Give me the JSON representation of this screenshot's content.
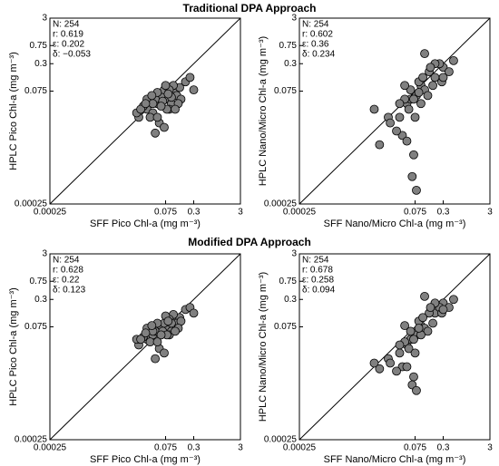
{
  "sections": [
    "Traditional DPA Approach",
    "Modified DPA Approach"
  ],
  "chart_data": [
    {
      "type": "scatter",
      "xlabel": "SFF Pico Chl-a  (mg m⁻³)",
      "ylabel": "HPLC Pico Chl-a  (mg m⁻³)",
      "annotations": [
        "N: 254",
        "r: 0.619",
        "ε: 0.202",
        "δ: −0.053"
      ],
      "log": true,
      "color": "#808080",
      "xlim": [
        0.00025,
        3
      ],
      "ylim": [
        0.00025,
        3
      ],
      "xticks": [
        0.00025,
        0.075,
        0.3,
        3
      ],
      "yticks": [
        0.00025,
        0.075,
        0.3,
        0.75,
        3
      ],
      "x": [
        0.03,
        0.05,
        0.02,
        0.08,
        0.12,
        0.04,
        0.06,
        0.1,
        0.15,
        0.025,
        0.035,
        0.07,
        0.09,
        0.2,
        0.045,
        0.055,
        0.13,
        0.018,
        0.065,
        0.11,
        0.03,
        0.08,
        0.05,
        0.16,
        0.04,
        0.09,
        0.07,
        0.25,
        0.022,
        0.06,
        0.14,
        0.038,
        0.1,
        0.05,
        0.075,
        0.028,
        0.12,
        0.085,
        0.3,
        0.045
      ],
      "y": [
        0.03,
        0.04,
        0.02,
        0.05,
        0.07,
        0.025,
        0.06,
        0.04,
        0.09,
        0.035,
        0.02,
        0.08,
        0.03,
        0.12,
        0.05,
        0.015,
        0.06,
        0.025,
        0.045,
        0.1,
        0.05,
        0.03,
        0.07,
        0.05,
        0.04,
        0.08,
        0.012,
        0.15,
        0.03,
        0.035,
        0.04,
        0.06,
        0.055,
        0.02,
        0.1,
        0.04,
        0.03,
        0.065,
        0.08,
        0.009
      ]
    },
    {
      "type": "scatter",
      "xlabel": "SFF Nano/Micro Chl-a  (mg m⁻³)",
      "ylabel": "HPLC Nano/Micro Chl-a  (mg m⁻³)",
      "annotations": [
        "N: 254",
        "r: 0.602",
        "ε: 0.36",
        "δ: 0.234"
      ],
      "log": true,
      "color": "#808080",
      "xlim": [
        0.00025,
        3
      ],
      "ylim": [
        0.00025,
        3
      ],
      "xticks": [
        0.00025,
        0.075,
        0.3,
        3
      ],
      "yticks": [
        0.00025,
        0.075,
        0.3,
        0.75,
        3
      ],
      "x": [
        0.02,
        0.05,
        0.1,
        0.2,
        0.3,
        0.04,
        0.08,
        0.15,
        0.01,
        0.03,
        0.06,
        0.12,
        0.25,
        0.5,
        0.07,
        0.09,
        0.035,
        0.18,
        0.4,
        0.045,
        0.11,
        0.022,
        0.065,
        0.14,
        0.28,
        0.055,
        0.08,
        0.013,
        0.1,
        0.2,
        0.06,
        0.035,
        0.16,
        0.075,
        0.045,
        0.12,
        0.3,
        0.09,
        0.05,
        0.07
      ],
      "y": [
        0.02,
        0.04,
        0.1,
        0.15,
        0.25,
        0.008,
        0.06,
        0.2,
        0.03,
        0.01,
        0.05,
        0.08,
        0.3,
        0.35,
        0.003,
        0.12,
        0.02,
        0.1,
        0.2,
        0.05,
        0.15,
        0.015,
        0.001,
        0.06,
        0.12,
        0.03,
        0.0005,
        0.005,
        0.04,
        0.3,
        0.08,
        0.04,
        0.25,
        0.02,
        0.1,
        0.5,
        0.15,
        0.07,
        0.006,
        0.05
      ]
    },
    {
      "type": "scatter",
      "xlabel": "SFF Pico Chl-a  (mg m⁻³)",
      "ylabel": "HPLC Pico Chl-a  (mg m⁻³)",
      "annotations": [
        "N: 254",
        "r: 0.628",
        "ε: 0.22",
        "δ: 0.123"
      ],
      "log": true,
      "color": "#808080",
      "xlim": [
        0.00025,
        3
      ],
      "ylim": [
        0.00025,
        3
      ],
      "xticks": [
        0.00025,
        0.075,
        0.3,
        3
      ],
      "yticks": [
        0.00025,
        0.075,
        0.3,
        0.75,
        3
      ],
      "x": [
        0.03,
        0.05,
        0.02,
        0.08,
        0.12,
        0.04,
        0.06,
        0.1,
        0.15,
        0.025,
        0.035,
        0.07,
        0.09,
        0.2,
        0.045,
        0.055,
        0.13,
        0.018,
        0.065,
        0.11,
        0.03,
        0.08,
        0.05,
        0.16,
        0.04,
        0.09,
        0.07,
        0.25,
        0.022,
        0.06,
        0.14,
        0.038,
        0.1,
        0.05,
        0.075,
        0.028,
        0.12,
        0.085,
        0.3,
        0.045
      ],
      "y": [
        0.04,
        0.06,
        0.03,
        0.07,
        0.1,
        0.05,
        0.08,
        0.06,
        0.12,
        0.045,
        0.035,
        0.09,
        0.05,
        0.18,
        0.06,
        0.025,
        0.09,
        0.04,
        0.06,
        0.14,
        0.07,
        0.05,
        0.09,
        0.1,
        0.06,
        0.11,
        0.02,
        0.2,
        0.04,
        0.05,
        0.07,
        0.08,
        0.09,
        0.035,
        0.13,
        0.055,
        0.06,
        0.1,
        0.15,
        0.015
      ]
    },
    {
      "type": "scatter",
      "xlabel": "SFF Nano/Micro Chl-a  (mg m⁻³)",
      "ylabel": "HPLC Nano/Micro Chl-a  (mg m⁻³)",
      "annotations": [
        "N: 254",
        "r: 0.678",
        "ε: 0.258",
        "δ: 0.094"
      ],
      "log": true,
      "color": "#808080",
      "xlim": [
        0.00025,
        3
      ],
      "ylim": [
        0.00025,
        3
      ],
      "xticks": [
        0.00025,
        0.075,
        0.3,
        3
      ],
      "yticks": [
        0.00025,
        0.075,
        0.3,
        0.75,
        3
      ],
      "x": [
        0.02,
        0.05,
        0.1,
        0.2,
        0.3,
        0.04,
        0.08,
        0.15,
        0.01,
        0.03,
        0.06,
        0.12,
        0.25,
        0.5,
        0.07,
        0.09,
        0.035,
        0.18,
        0.4,
        0.045,
        0.11,
        0.022,
        0.065,
        0.14,
        0.28,
        0.055,
        0.08,
        0.013,
        0.1,
        0.2,
        0.06,
        0.035,
        0.16,
        0.075,
        0.045,
        0.12,
        0.3,
        0.09,
        0.05,
        0.07
      ],
      "y": [
        0.015,
        0.03,
        0.08,
        0.15,
        0.25,
        0.01,
        0.05,
        0.15,
        0.012,
        0.008,
        0.04,
        0.07,
        0.2,
        0.3,
        0.006,
        0.1,
        0.02,
        0.09,
        0.2,
        0.035,
        0.12,
        0.012,
        0.004,
        0.06,
        0.15,
        0.025,
        0.003,
        0.009,
        0.05,
        0.25,
        0.06,
        0.03,
        0.2,
        0.02,
        0.08,
        0.35,
        0.18,
        0.07,
        0.01,
        0.04
      ]
    }
  ]
}
